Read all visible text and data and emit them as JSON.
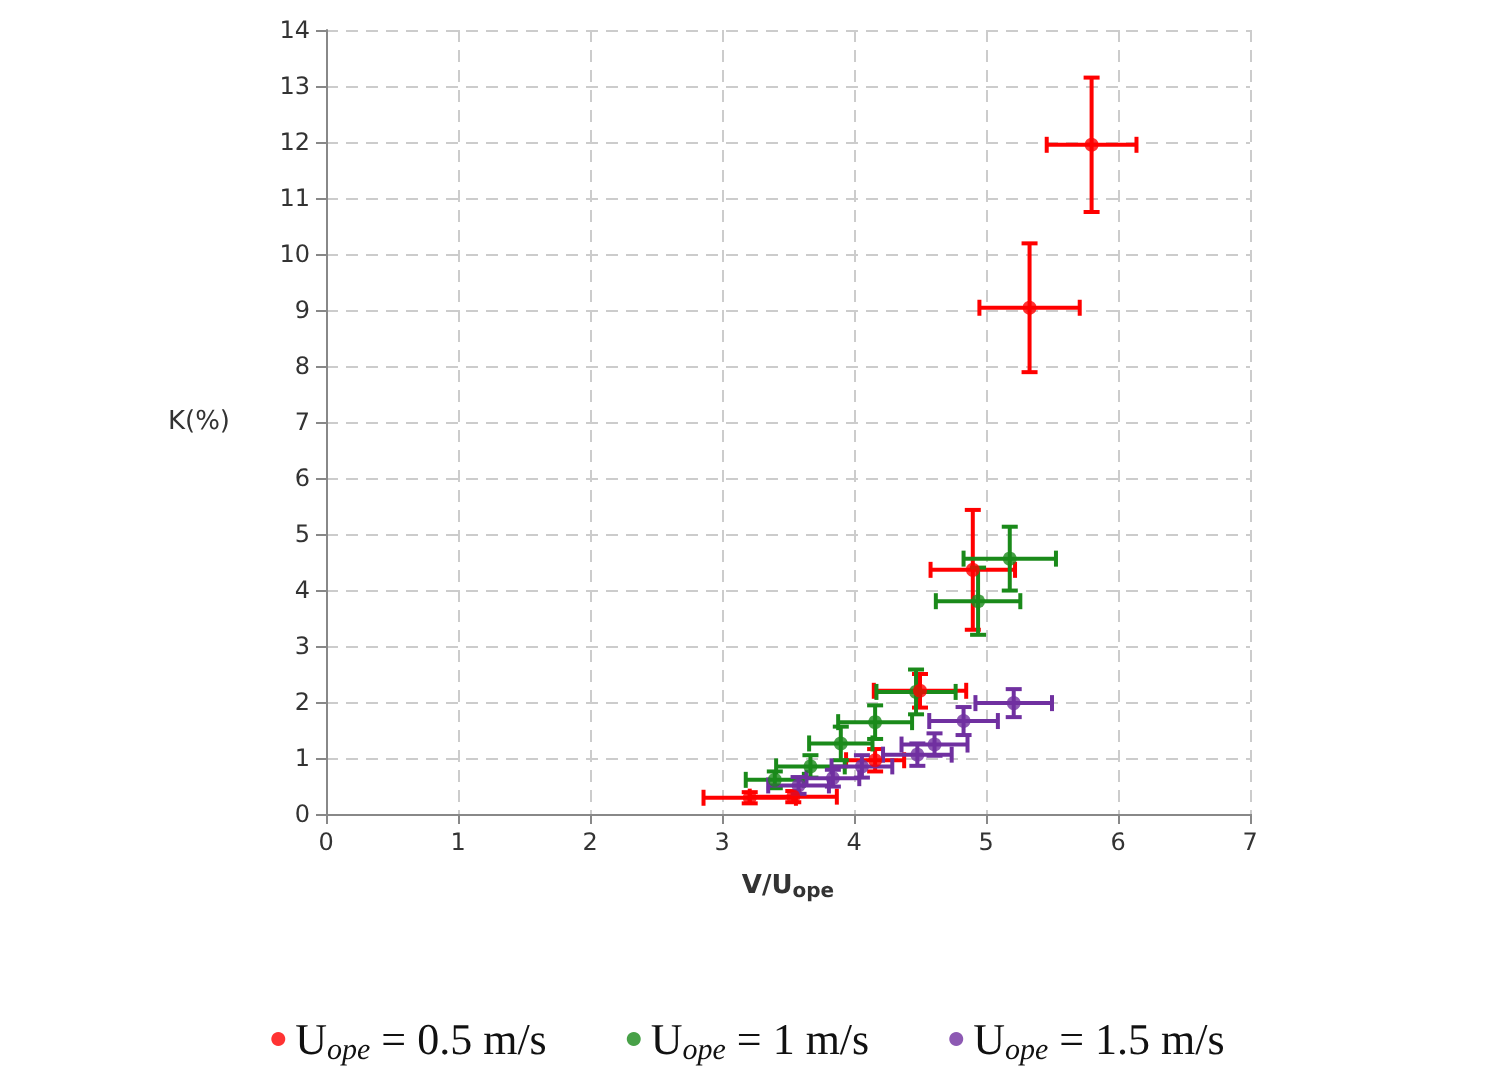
{
  "chart_data": {
    "type": "scatter",
    "xlabel": "V/U$_{ope}$",
    "ylabel": "K(%)",
    "xlim": [
      0,
      7
    ],
    "xticks": [
      0,
      1,
      2,
      3,
      4,
      5,
      6,
      7
    ],
    "ylim": [
      0,
      14
    ],
    "yticks": [
      0,
      1,
      2,
      3,
      4,
      5,
      6,
      7,
      8,
      9,
      10,
      11,
      12,
      13,
      14
    ],
    "grid": true,
    "legend": "bottom",
    "marker": "circle",
    "series": [
      {
        "name": "U$_{ope}$ = 0.5 m/s",
        "color": "#ff0000",
        "x": [
          5.8,
          5.33,
          4.9,
          4.5,
          4.16,
          3.54,
          3.21
        ],
        "values": [
          11.95,
          9.04,
          4.36,
          2.2,
          0.96,
          0.31,
          0.29
        ],
        "xerrors": [
          0.34,
          0.38,
          0.32,
          0.35,
          0.22,
          0.33,
          0.35
        ],
        "errors": [
          1.2,
          1.15,
          1.07,
          0.3,
          0.2,
          0.1,
          0.1
        ]
      },
      {
        "name": "U$_{ope}$ = 1 m/s",
        "color": "#1a8a1a",
        "x": [
          5.18,
          4.94,
          4.47,
          4.16,
          3.9,
          3.67,
          3.4
        ],
        "values": [
          4.56,
          3.8,
          2.18,
          1.64,
          1.26,
          0.85,
          0.61
        ],
        "xerrors": [
          0.35,
          0.32,
          0.3,
          0.28,
          0.24,
          0.26,
          0.22
        ],
        "errors": [
          0.57,
          0.6,
          0.4,
          0.3,
          0.3,
          0.2,
          0.15
        ]
      },
      {
        "name": "U$_{ope}$ = 1.5 m/s",
        "color": "#7030a0",
        "x": [
          5.21,
          4.83,
          4.61,
          4.48,
          4.06,
          3.84,
          3.58
        ],
        "values": [
          1.98,
          1.66,
          1.24,
          1.06,
          0.85,
          0.64,
          0.51
        ],
        "xerrors": [
          0.29,
          0.26,
          0.25,
          0.26,
          0.23,
          0.2,
          0.23
        ],
        "errors": [
          0.25,
          0.25,
          0.2,
          0.2,
          0.2,
          0.15,
          0.15
        ]
      }
    ]
  }
}
